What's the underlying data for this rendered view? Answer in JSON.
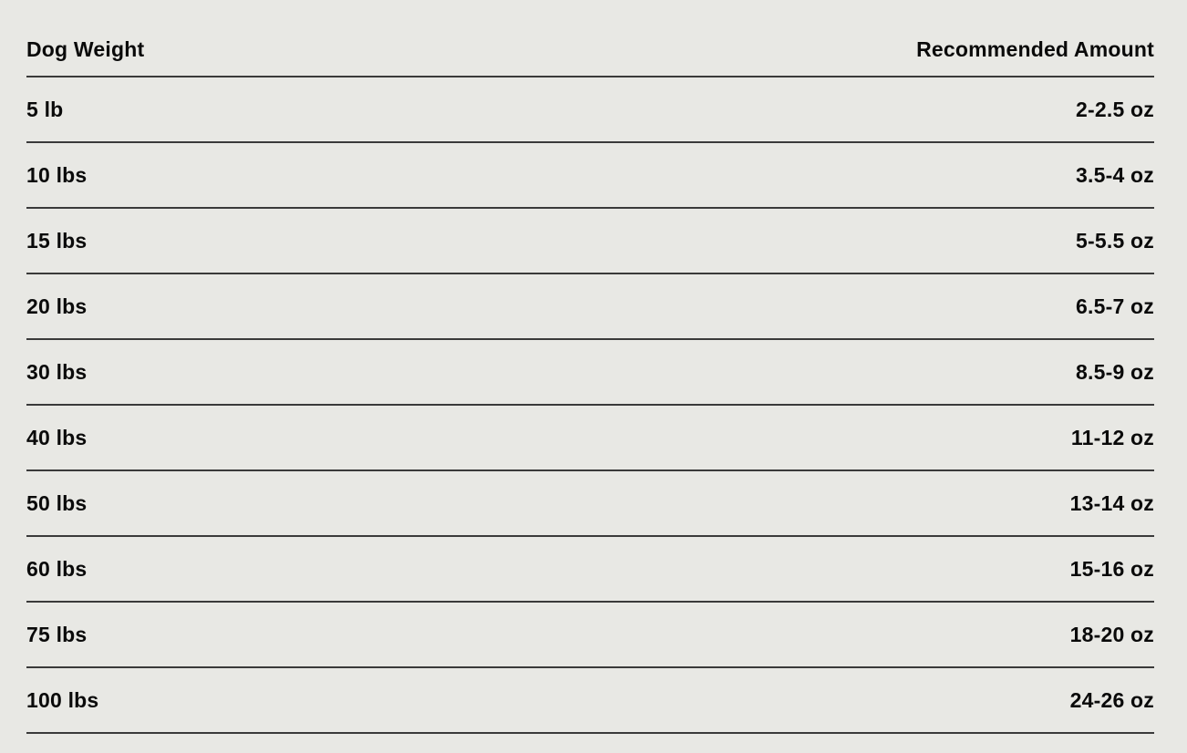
{
  "table": {
    "headers": [
      "Dog Weight",
      "Recommended Amount"
    ],
    "rows": [
      {
        "weight": "5 lb",
        "amount": "2-2.5 oz"
      },
      {
        "weight": "10 lbs",
        "amount": "3.5-4 oz"
      },
      {
        "weight": "15 lbs",
        "amount": "5-5.5 oz"
      },
      {
        "weight": "20 lbs",
        "amount": "6.5-7 oz"
      },
      {
        "weight": "30 lbs",
        "amount": "8.5-9 oz"
      },
      {
        "weight": "40 lbs",
        "amount": "11-12 oz"
      },
      {
        "weight": "50 lbs",
        "amount": "13-14 oz"
      },
      {
        "weight": "60 lbs",
        "amount": "15-16 oz"
      },
      {
        "weight": "75 lbs",
        "amount": "18-20 oz"
      },
      {
        "weight": "100 lbs",
        "amount": "24-26 oz"
      }
    ]
  },
  "colors": {
    "background": "#e8e8e4",
    "text": "#0a0a0a",
    "divider": "#3a3a3a"
  }
}
